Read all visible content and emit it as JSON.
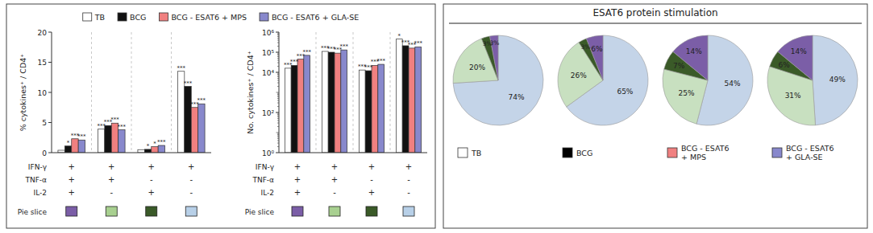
{
  "chart_data": [
    {
      "type": "bar",
      "y_label": "% cytokines⁺ / CD4⁺",
      "categories": [
        null,
        null,
        null,
        null
      ],
      "series": [
        {
          "color": "white",
          "values": [
            0.4,
            3.9,
            0.5,
            13.5
          ],
          "annotations": [
            null,
            "***",
            null,
            "***"
          ]
        },
        {
          "color": "#111111",
          "values": [
            1.1,
            4.5,
            0.55,
            11.0
          ],
          "annotations": [
            "*",
            "***",
            "*",
            "***"
          ]
        },
        {
          "color": "#F08080",
          "values": [
            2.3,
            4.9,
            1.0,
            7.5
          ],
          "annotations": [
            "***",
            "***",
            "*",
            "***"
          ]
        },
        {
          "color": "#8888CC",
          "values": [
            2.1,
            3.8,
            1.2,
            8.1
          ],
          "annotations": [
            "***",
            "***",
            "***",
            "***"
          ]
        }
      ],
      "ylim": [
        0,
        20
      ],
      "yticks": [
        0,
        5,
        10,
        15,
        20
      ],
      "category_table": {
        "rows": [
          {
            "label": "IFN-γ",
            "values": [
              "+",
              "+",
              "+",
              "+"
            ]
          },
          {
            "label": "TNF-α",
            "values": [
              "+",
              "+",
              "-",
              "-"
            ]
          },
          {
            "label": "IL-2",
            "values": [
              "+",
              "-",
              "+",
              "-"
            ]
          }
        ],
        "slice_label": "Pie slice",
        "slice_colors": [
          "#7B5EA7",
          "#A8D090",
          "#3A5A28",
          "#B8D0E8"
        ]
      }
    },
    {
      "type": "bar",
      "y_label": "No. cytokines⁺ / CD4⁺",
      "log": "y",
      "legend": "top",
      "categories": [
        null,
        null,
        null,
        null
      ],
      "series": [
        {
          "name": "TB",
          "color": "white",
          "values": [
            16000,
            110000,
            13000,
            450000
          ],
          "annotations": [
            "***",
            "***",
            "***",
            "*"
          ]
        },
        {
          "name": "BCG",
          "color": "#111111",
          "values": [
            22000,
            100000,
            12000,
            210000
          ],
          "annotations": [
            "***",
            "***",
            "***",
            "***"
          ]
        },
        {
          "name": "BCG - ESAT6 + MPS",
          "color": "#F08080",
          "values": [
            45000,
            90000,
            22000,
            160000
          ],
          "annotations": [
            "***",
            "***",
            "***",
            "***"
          ]
        },
        {
          "name": "BCG - ESAT6 + GLA-SE",
          "color": "#8888CC",
          "values": [
            70000,
            130000,
            25000,
            185000
          ],
          "annotations": [
            "***",
            "***",
            "***",
            "***"
          ]
        }
      ],
      "ylim": [
        1,
        1000000
      ],
      "yticks": [
        {
          "value": 1,
          "label": "10⁰"
        },
        {
          "value": 100,
          "label": "10²"
        },
        {
          "value": 10000,
          "label": "10⁴"
        },
        {
          "value": 100000,
          "label": "10⁵"
        },
        {
          "value": 1000000,
          "label": "10⁶"
        }
      ],
      "category_table": {
        "rows": [
          {
            "label": "IFN-γ",
            "values": [
              "+",
              "+",
              "+",
              "+"
            ]
          },
          {
            "label": "TNF-α",
            "values": [
              "+",
              "+",
              "-",
              "-"
            ]
          },
          {
            "label": "IL-2",
            "values": [
              "+",
              "-",
              "+",
              "-"
            ]
          }
        ],
        "slice_label": "Pie slice",
        "slice_colors": [
          "#7B5EA7",
          "#A8D090",
          "#3A5A28",
          "#B8D0E8"
        ]
      }
    },
    {
      "type": "pie",
      "title": "ESAT6 protein stimulation",
      "pies": [
        {
          "values": [
            74,
            20,
            3,
            3
          ],
          "value_labels": [
            "74%",
            "20%",
            "3%",
            "3%"
          ],
          "colors": [
            "#C4D4E8",
            "#C8E0C0",
            "#3A5A28",
            "#7B5EA7"
          ],
          "data_labels": true,
          "condition": {
            "name": "TB",
            "color": "white"
          }
        },
        {
          "values": [
            65,
            26,
            3,
            6
          ],
          "value_labels": [
            "65%",
            "26%",
            "3%",
            "6%"
          ],
          "colors": [
            "#C4D4E8",
            "#C8E0C0",
            "#3A5A28",
            "#7B5EA7"
          ],
          "data_labels": true,
          "condition": {
            "name": "BCG",
            "color": "black"
          }
        },
        {
          "values": [
            54,
            25,
            7,
            14
          ],
          "value_labels": [
            "54%",
            "25%",
            "7%",
            "14%"
          ],
          "colors": [
            "#C4D4E8",
            "#C8E0C0",
            "#3A5A28",
            "#7B5EA7"
          ],
          "data_labels": true,
          "condition": {
            "name": "BCG - ESAT6\n+ MPS",
            "color": "#F08080"
          }
        },
        {
          "values": [
            49,
            31,
            6,
            14
          ],
          "value_labels": [
            "49%",
            "31%",
            "6%",
            "14%"
          ],
          "colors": [
            "#C4D4E8",
            "#C8E0C0",
            "#3A5A28",
            "#7B5EA7"
          ],
          "data_labels": true,
          "condition": {
            "name": "BCG - ESAT6\n+ GLA-SE",
            "color": "#8888CC"
          }
        }
      ]
    }
  ]
}
